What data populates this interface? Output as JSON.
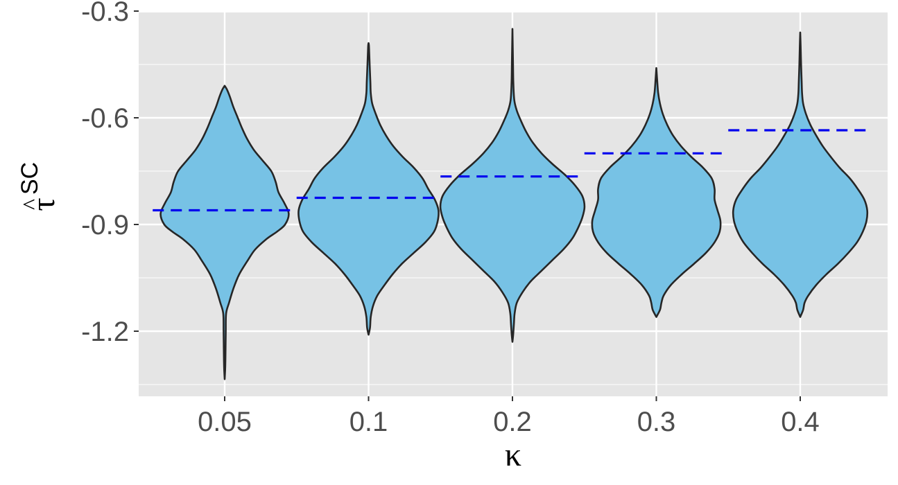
{
  "chart_data": {
    "type": "violin",
    "title": "",
    "xlabel": "κ",
    "ylabel": {
      "base": "τ",
      "accent": "^",
      "superscript": "SC"
    },
    "categories": [
      "0.05",
      "0.1",
      "0.2",
      "0.3",
      "0.4"
    ],
    "ylim": [
      -1.35,
      -0.28
    ],
    "yticks": [
      -0.3,
      -0.6,
      -0.9,
      -1.2
    ],
    "ytick_labels": [
      "-0.3",
      "-0.6",
      "-0.9",
      "-1.2"
    ],
    "grid": true,
    "colors": {
      "panel_background": "#e5e5e5",
      "grid": "#ffffff",
      "violin_fill": "#77c2e5",
      "violin_outline": "#262626",
      "reference_line": "#0000ee"
    },
    "series": [
      {
        "category": "0.05",
        "min": -1.335,
        "max": -0.51,
        "reference": -0.86,
        "density": [
          [
            -1.335,
            0.0
          ],
          [
            -1.3,
            0.008
          ],
          [
            -1.25,
            0.012
          ],
          [
            -1.2,
            0.015
          ],
          [
            -1.15,
            0.02
          ],
          [
            -1.12,
            0.06
          ],
          [
            -1.08,
            0.12
          ],
          [
            -1.04,
            0.2
          ],
          [
            -1.0,
            0.32
          ],
          [
            -0.97,
            0.42
          ],
          [
            -0.94,
            0.58
          ],
          [
            -0.92,
            0.72
          ],
          [
            -0.9,
            0.83
          ],
          [
            -0.87,
            0.88
          ],
          [
            -0.84,
            0.82
          ],
          [
            -0.81,
            0.74
          ],
          [
            -0.78,
            0.7
          ],
          [
            -0.75,
            0.64
          ],
          [
            -0.72,
            0.52
          ],
          [
            -0.69,
            0.4
          ],
          [
            -0.66,
            0.31
          ],
          [
            -0.63,
            0.24
          ],
          [
            -0.6,
            0.18
          ],
          [
            -0.57,
            0.12
          ],
          [
            -0.54,
            0.07
          ],
          [
            -0.52,
            0.03
          ],
          [
            -0.51,
            0.0
          ]
        ]
      },
      {
        "category": "0.1",
        "min": -1.21,
        "max": -0.39,
        "reference": -0.825,
        "density": [
          [
            -1.21,
            0.0
          ],
          [
            -1.19,
            0.02
          ],
          [
            -1.16,
            0.03
          ],
          [
            -1.13,
            0.06
          ],
          [
            -1.1,
            0.12
          ],
          [
            -1.07,
            0.22
          ],
          [
            -1.04,
            0.33
          ],
          [
            -1.01,
            0.46
          ],
          [
            -0.98,
            0.62
          ],
          [
            -0.95,
            0.78
          ],
          [
            -0.92,
            0.9
          ],
          [
            -0.89,
            0.95
          ],
          [
            -0.86,
            0.96
          ],
          [
            -0.83,
            0.91
          ],
          [
            -0.8,
            0.82
          ],
          [
            -0.77,
            0.74
          ],
          [
            -0.74,
            0.62
          ],
          [
            -0.71,
            0.47
          ],
          [
            -0.68,
            0.34
          ],
          [
            -0.65,
            0.24
          ],
          [
            -0.62,
            0.16
          ],
          [
            -0.59,
            0.1
          ],
          [
            -0.56,
            0.05
          ],
          [
            -0.53,
            0.03
          ],
          [
            -0.5,
            0.025
          ],
          [
            -0.45,
            0.015
          ],
          [
            -0.4,
            0.006
          ],
          [
            -0.39,
            0.0
          ]
        ]
      },
      {
        "category": "0.2",
        "min": -1.23,
        "max": -0.35,
        "reference": -0.765,
        "density": [
          [
            -1.23,
            0.0
          ],
          [
            -1.21,
            0.01
          ],
          [
            -1.18,
            0.02
          ],
          [
            -1.15,
            0.03
          ],
          [
            -1.12,
            0.06
          ],
          [
            -1.09,
            0.14
          ],
          [
            -1.06,
            0.25
          ],
          [
            -1.03,
            0.4
          ],
          [
            -1.0,
            0.55
          ],
          [
            -0.97,
            0.7
          ],
          [
            -0.94,
            0.82
          ],
          [
            -0.91,
            0.9
          ],
          [
            -0.88,
            0.96
          ],
          [
            -0.85,
            0.99
          ],
          [
            -0.82,
            0.96
          ],
          [
            -0.79,
            0.86
          ],
          [
            -0.76,
            0.72
          ],
          [
            -0.73,
            0.55
          ],
          [
            -0.7,
            0.4
          ],
          [
            -0.67,
            0.28
          ],
          [
            -0.64,
            0.19
          ],
          [
            -0.61,
            0.12
          ],
          [
            -0.58,
            0.06
          ],
          [
            -0.55,
            0.025
          ],
          [
            -0.5,
            0.012
          ],
          [
            -0.45,
            0.008
          ],
          [
            -0.4,
            0.004
          ],
          [
            -0.35,
            0.0
          ]
        ]
      },
      {
        "category": "0.3",
        "min": -1.16,
        "max": -0.46,
        "reference": -0.7,
        "density": [
          [
            -1.16,
            0.0
          ],
          [
            -1.14,
            0.05
          ],
          [
            -1.12,
            0.07
          ],
          [
            -1.1,
            0.1
          ],
          [
            -1.07,
            0.2
          ],
          [
            -1.04,
            0.35
          ],
          [
            -1.01,
            0.52
          ],
          [
            -0.98,
            0.68
          ],
          [
            -0.95,
            0.8
          ],
          [
            -0.92,
            0.87
          ],
          [
            -0.89,
            0.88
          ],
          [
            -0.86,
            0.84
          ],
          [
            -0.83,
            0.8
          ],
          [
            -0.8,
            0.8
          ],
          [
            -0.77,
            0.76
          ],
          [
            -0.74,
            0.64
          ],
          [
            -0.71,
            0.48
          ],
          [
            -0.68,
            0.34
          ],
          [
            -0.65,
            0.23
          ],
          [
            -0.62,
            0.15
          ],
          [
            -0.59,
            0.09
          ],
          [
            -0.56,
            0.05
          ],
          [
            -0.53,
            0.025
          ],
          [
            -0.49,
            0.01
          ],
          [
            -0.46,
            0.0
          ]
        ]
      },
      {
        "category": "0.4",
        "min": -1.16,
        "max": -0.36,
        "reference": -0.635,
        "density": [
          [
            -1.16,
            0.0
          ],
          [
            -1.14,
            0.04
          ],
          [
            -1.12,
            0.06
          ],
          [
            -1.1,
            0.11
          ],
          [
            -1.07,
            0.22
          ],
          [
            -1.04,
            0.36
          ],
          [
            -1.01,
            0.52
          ],
          [
            -0.98,
            0.66
          ],
          [
            -0.95,
            0.78
          ],
          [
            -0.92,
            0.86
          ],
          [
            -0.89,
            0.91
          ],
          [
            -0.86,
            0.92
          ],
          [
            -0.83,
            0.88
          ],
          [
            -0.8,
            0.79
          ],
          [
            -0.77,
            0.68
          ],
          [
            -0.74,
            0.54
          ],
          [
            -0.71,
            0.42
          ],
          [
            -0.68,
            0.31
          ],
          [
            -0.65,
            0.22
          ],
          [
            -0.62,
            0.14
          ],
          [
            -0.59,
            0.08
          ],
          [
            -0.56,
            0.04
          ],
          [
            -0.53,
            0.025
          ],
          [
            -0.5,
            0.02
          ],
          [
            -0.45,
            0.012
          ],
          [
            -0.4,
            0.006
          ],
          [
            -0.36,
            0.0
          ]
        ]
      }
    ]
  }
}
